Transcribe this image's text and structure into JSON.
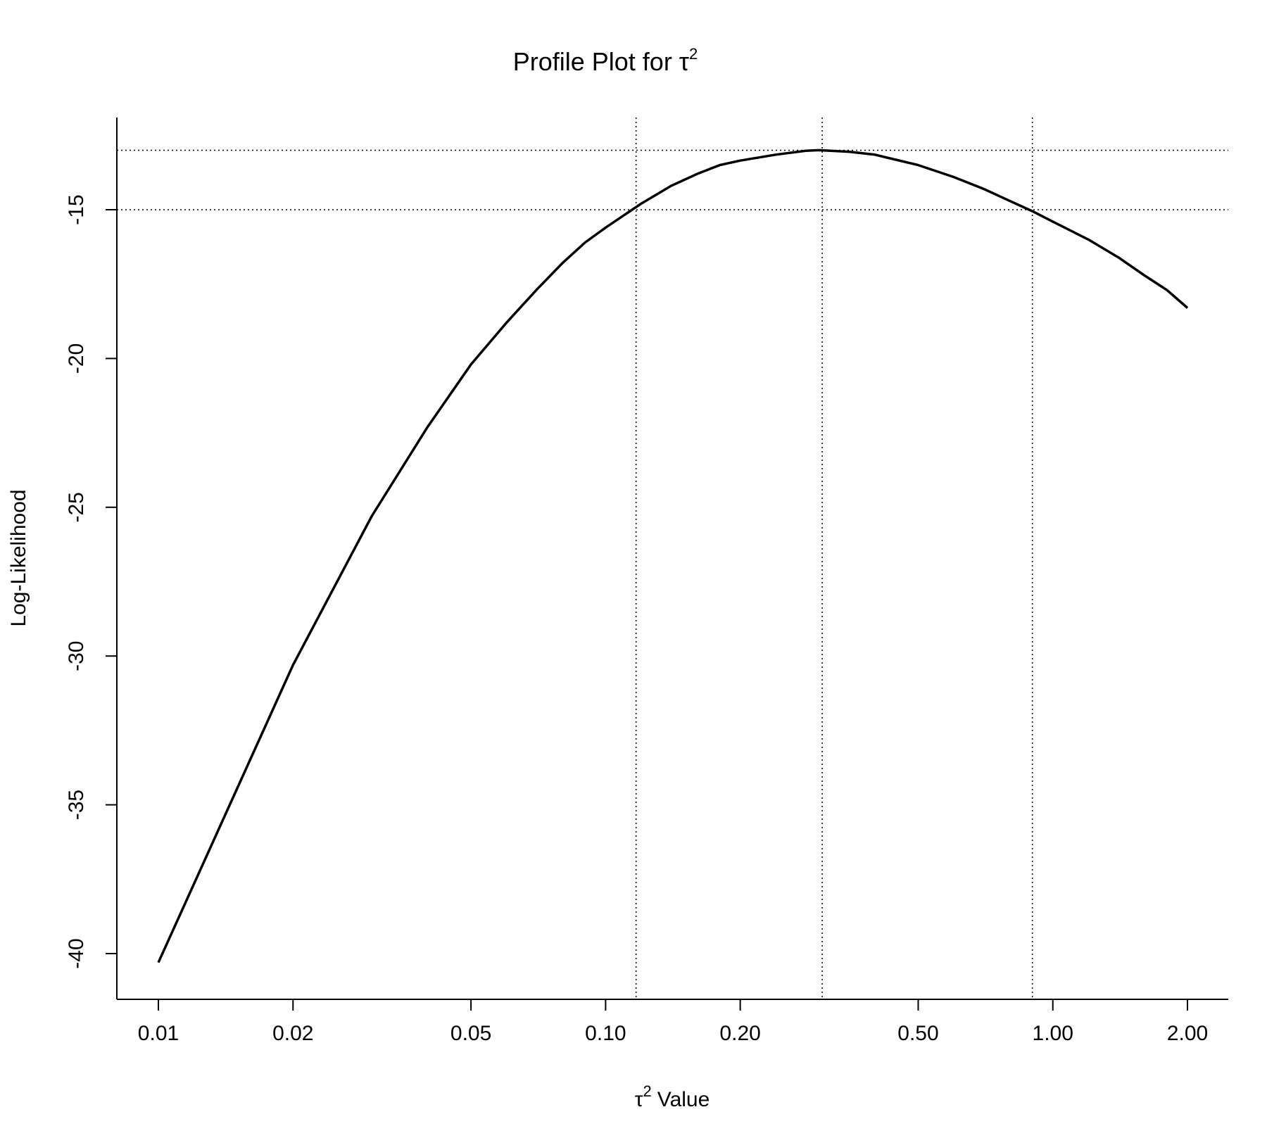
{
  "chart_data": {
    "type": "line",
    "title": "Profile Plot for τ",
    "title_superscript": "2",
    "xlabel": "Value",
    "xlabel_prefix": "τ",
    "xlabel_superscript": "2",
    "ylabel": "Log-Likelihood",
    "x_scale": "log",
    "xlim": [
      0.0075,
      2.7
    ],
    "ylim": [
      -41.5,
      -11.9
    ],
    "x_ticks": [
      0.01,
      0.02,
      0.05,
      0.1,
      0.2,
      0.5,
      1.0,
      2.0
    ],
    "x_tick_labels": [
      "0.01",
      "0.02",
      "0.05",
      "0.10",
      "0.20",
      "0.50",
      "1.00",
      "2.00"
    ],
    "y_ticks": [
      -40,
      -35,
      -30,
      -25,
      -20,
      -15
    ],
    "y_tick_labels": [
      "-40",
      "-35",
      "-30",
      "-25",
      "-20",
      "-15"
    ],
    "grid": false,
    "series": [
      {
        "x": [
          0.01,
          0.02,
          0.03,
          0.04,
          0.05,
          0.06,
          0.07,
          0.08,
          0.09,
          0.1,
          0.12,
          0.14,
          0.16,
          0.18,
          0.2,
          0.24,
          0.28,
          0.3,
          0.35,
          0.4,
          0.5,
          0.6,
          0.7,
          0.8,
          0.9,
          1.0,
          1.2,
          1.4,
          1.6,
          1.8,
          2.0
        ],
        "y": [
          -40.3,
          -30.3,
          -25.3,
          -22.3,
          -20.2,
          -18.8,
          -17.7,
          -16.8,
          -16.1,
          -15.6,
          -14.8,
          -14.2,
          -13.8,
          -13.5,
          -13.35,
          -13.15,
          -13.02,
          -13.0,
          -13.05,
          -13.15,
          -13.5,
          -13.9,
          -14.3,
          -14.7,
          -15.05,
          -15.4,
          -16.0,
          -16.6,
          -17.2,
          -17.7,
          -18.3
        ],
        "color": "#000000"
      }
    ],
    "reference_lines": {
      "horizontal": [
        -13.0,
        -15.0
      ],
      "vertical": [
        0.117,
        0.305,
        0.9
      ]
    }
  }
}
